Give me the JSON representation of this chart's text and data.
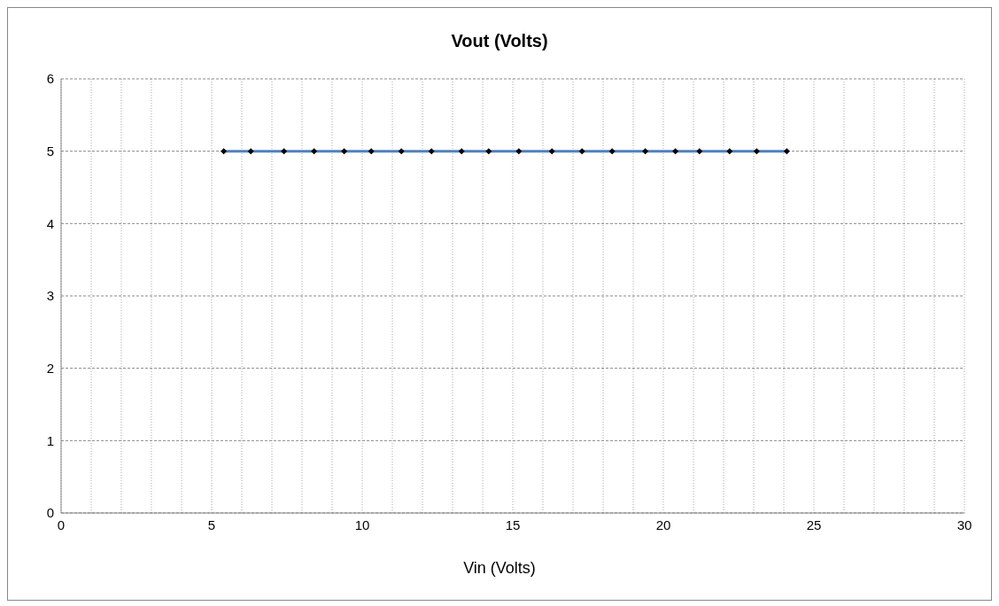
{
  "chart_data": {
    "type": "line",
    "title": "Vout (Volts)",
    "xlabel": "Vin (Volts)",
    "x": [
      5.4,
      6.3,
      7.4,
      8.4,
      9.4,
      10.3,
      11.3,
      12.3,
      13.3,
      14.2,
      15.2,
      16.3,
      17.3,
      18.3,
      19.4,
      20.4,
      21.2,
      22.2,
      23.1,
      24.1
    ],
    "series": [
      {
        "color": "#4f81bd",
        "values": [
          5,
          5,
          5,
          5,
          5,
          5,
          5,
          5,
          5,
          5,
          5,
          5,
          5,
          5,
          5,
          5,
          5,
          5,
          5,
          5
        ]
      }
    ],
    "xlim": [
      0,
      30
    ],
    "xticks": [
      0,
      {
        "value": 1,
        "label": null
      },
      {
        "value": 2,
        "label": null
      },
      {
        "value": 3,
        "label": null
      },
      {
        "value": 4,
        "label": null
      },
      5,
      {
        "value": 6,
        "label": null
      },
      {
        "value": 7,
        "label": null
      },
      {
        "value": 8,
        "label": null
      },
      {
        "value": 9,
        "label": null
      },
      10,
      {
        "value": 11,
        "label": null
      },
      {
        "value": 12,
        "label": null
      },
      {
        "value": 13,
        "label": null
      },
      {
        "value": 14,
        "label": null
      },
      15,
      {
        "value": 16,
        "label": null
      },
      {
        "value": 17,
        "label": null
      },
      {
        "value": 18,
        "label": null
      },
      {
        "value": 19,
        "label": null
      },
      20,
      {
        "value": 21,
        "label": null
      },
      {
        "value": 22,
        "label": null
      },
      {
        "value": 23,
        "label": null
      },
      {
        "value": 24,
        "label": null
      },
      25,
      {
        "value": 26,
        "label": null
      },
      {
        "value": 27,
        "label": null
      },
      {
        "value": 28,
        "label": null
      },
      {
        "value": 29,
        "label": null
      },
      30
    ],
    "ylim": [
      0,
      6
    ],
    "yticks": [
      0,
      1,
      2,
      3,
      4,
      5,
      6
    ],
    "grid": true,
    "marker": "diamond",
    "line_style": "solid"
  }
}
